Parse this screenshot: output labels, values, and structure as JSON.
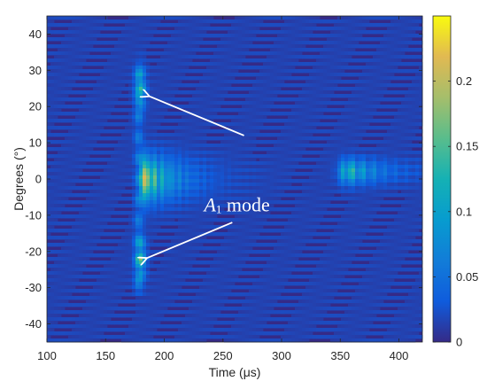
{
  "chart_data": {
    "type": "heatmap",
    "title": "",
    "xlabel": "Time (μs)",
    "ylabel": "Degrees (°)",
    "xlim": [
      100,
      420
    ],
    "ylim": [
      -45,
      45
    ],
    "xticks": [
      100,
      150,
      200,
      250,
      300,
      350,
      400
    ],
    "yticks": [
      40,
      30,
      20,
      10,
      0,
      -10,
      -20,
      -30,
      -40
    ],
    "xtick_labels": [
      "100",
      "150",
      "200",
      "250",
      "300",
      "350",
      "400"
    ],
    "ytick_labels": [
      "40",
      "30",
      "20",
      "10",
      "0",
      "-10",
      "-20",
      "-30",
      "-40"
    ],
    "colorbar": {
      "colormap": "parula",
      "range": [
        0,
        0.25
      ],
      "ticks": [
        0,
        0.05,
        0.1,
        0.15,
        0.2
      ],
      "tick_labels": [
        "0",
        "0.05",
        "0.1",
        "0.15",
        "0.2"
      ]
    },
    "background_value": 0.015,
    "hotspots": [
      {
        "time": 182,
        "degrees": 0,
        "peak": 0.24
      },
      {
        "time": 180,
        "degrees": 25,
        "peak": 0.11
      },
      {
        "time": 180,
        "degrees": -22,
        "peak": 0.13
      },
      {
        "time": 357,
        "degrees": 2,
        "peak": 0.15
      }
    ],
    "annotations": [
      {
        "text_main": "A",
        "text_sub": "1",
        "text_rest": " mode",
        "time": 262,
        "degrees": -7,
        "arrows": [
          {
            "from_time": 268,
            "from_degrees": 12,
            "to_time": 186,
            "to_degrees": 23
          },
          {
            "from_time": 258,
            "from_degrees": -12,
            "to_time": 184,
            "to_degrees": -22
          }
        ]
      }
    ]
  }
}
